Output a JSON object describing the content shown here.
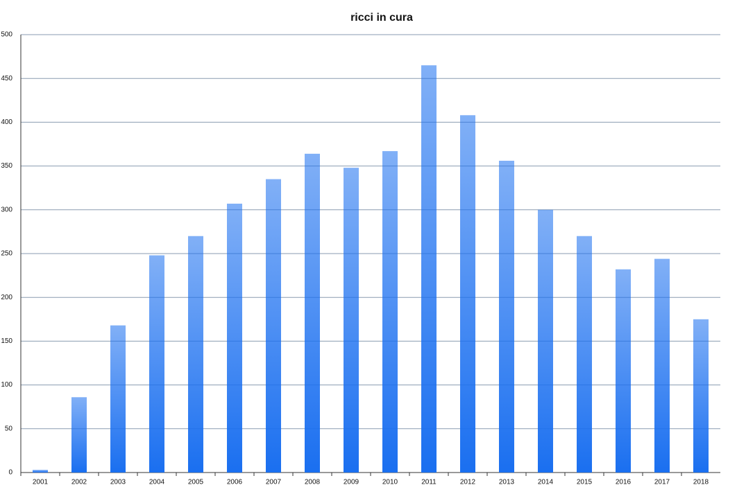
{
  "chart_data": {
    "type": "bar",
    "title": "ricci in cura",
    "categories": [
      "2001",
      "2002",
      "2003",
      "2004",
      "2005",
      "2006",
      "2007",
      "2008",
      "2009",
      "2010",
      "2011",
      "2012",
      "2013",
      "2014",
      "2015",
      "2016",
      "2017",
      "2018"
    ],
    "values": [
      3,
      86,
      168,
      248,
      270,
      307,
      335,
      364,
      348,
      367,
      465,
      408,
      356,
      300,
      270,
      232,
      244,
      175
    ],
    "color": "#1a6ff0",
    "ylim": [
      0,
      500
    ],
    "yticks": [
      0,
      50,
      100,
      150,
      200,
      250,
      300,
      350,
      400,
      450,
      500
    ],
    "grid": true
  }
}
